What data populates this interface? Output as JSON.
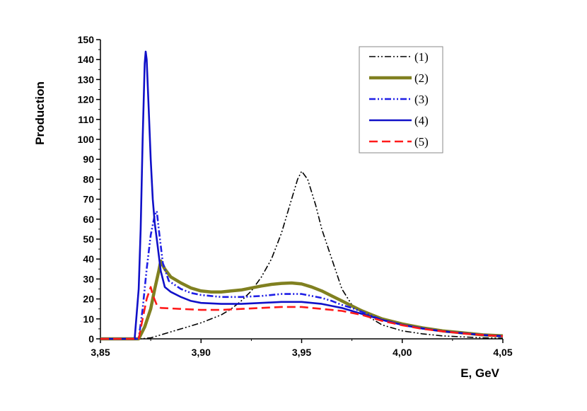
{
  "chart_data": {
    "type": "line",
    "title": "",
    "xlabel": "E, GeV",
    "ylabel": "Production",
    "xlim": [
      3.85,
      4.05
    ],
    "ylim": [
      0,
      150
    ],
    "x_ticks": [
      3.85,
      3.9,
      3.95,
      4.0,
      4.05
    ],
    "x_tick_labels": [
      "3,85",
      "3,90",
      "3,95",
      "4,00",
      "4,05"
    ],
    "y_ticks": [
      0,
      10,
      20,
      30,
      40,
      50,
      60,
      70,
      80,
      90,
      100,
      110,
      120,
      130,
      140,
      150
    ],
    "y_tick_labels": [
      "0",
      "10",
      "20",
      "30",
      "40",
      "50",
      "60",
      "70",
      "80",
      "90",
      "100",
      "110",
      "120",
      "130",
      "140",
      "150"
    ],
    "grid": false,
    "legend_position": "top-right",
    "series": [
      {
        "name": "(1)",
        "color": "#000000",
        "style": "dash-dot-dot",
        "width": 1.6,
        "points": [
          [
            3.85,
            0
          ],
          [
            3.87,
            0
          ],
          [
            3.875,
            0.5
          ],
          [
            3.88,
            2
          ],
          [
            3.885,
            3.5
          ],
          [
            3.89,
            5
          ],
          [
            3.895,
            6.5
          ],
          [
            3.9,
            8
          ],
          [
            3.905,
            10
          ],
          [
            3.91,
            12
          ],
          [
            3.915,
            15
          ],
          [
            3.92,
            19
          ],
          [
            3.925,
            24
          ],
          [
            3.93,
            31
          ],
          [
            3.935,
            40
          ],
          [
            3.94,
            53
          ],
          [
            3.945,
            70
          ],
          [
            3.948,
            80
          ],
          [
            3.95,
            84
          ],
          [
            3.953,
            80
          ],
          [
            3.957,
            67
          ],
          [
            3.96,
            55
          ],
          [
            3.965,
            40
          ],
          [
            3.97,
            25
          ],
          [
            3.975,
            17
          ],
          [
            3.98,
            13
          ],
          [
            3.985,
            10
          ],
          [
            3.99,
            7
          ],
          [
            4.0,
            4
          ],
          [
            4.01,
            2.5
          ],
          [
            4.02,
            1.5
          ],
          [
            4.03,
            1
          ],
          [
            4.04,
            0.5
          ],
          [
            4.05,
            0.3
          ]
        ]
      },
      {
        "name": "(2)",
        "color": "#808020",
        "style": "solid",
        "width": 4.5,
        "points": [
          [
            3.85,
            0
          ],
          [
            3.869,
            0
          ],
          [
            3.872,
            6
          ],
          [
            3.875,
            15
          ],
          [
            3.877,
            25
          ],
          [
            3.879,
            34
          ],
          [
            3.88,
            39
          ],
          [
            3.882,
            35
          ],
          [
            3.885,
            31
          ],
          [
            3.89,
            28
          ],
          [
            3.895,
            25.5
          ],
          [
            3.9,
            24
          ],
          [
            3.905,
            23.5
          ],
          [
            3.91,
            23.5
          ],
          [
            3.915,
            24
          ],
          [
            3.92,
            24.5
          ],
          [
            3.925,
            25.5
          ],
          [
            3.93,
            26.5
          ],
          [
            3.935,
            27.3
          ],
          [
            3.94,
            27.8
          ],
          [
            3.945,
            28
          ],
          [
            3.95,
            27.5
          ],
          [
            3.955,
            26
          ],
          [
            3.96,
            24
          ],
          [
            3.965,
            21.5
          ],
          [
            3.97,
            19
          ],
          [
            3.975,
            16.5
          ],
          [
            3.98,
            14
          ],
          [
            3.985,
            12
          ],
          [
            3.99,
            10
          ],
          [
            4.0,
            7.5
          ],
          [
            4.01,
            5.5
          ],
          [
            4.02,
            4
          ],
          [
            4.03,
            3
          ],
          [
            4.04,
            2
          ],
          [
            4.05,
            1.5
          ]
        ]
      },
      {
        "name": "(3)",
        "color": "#1e1ee6",
        "style": "dash-dot-dot",
        "width": 2.6,
        "points": [
          [
            3.85,
            0
          ],
          [
            3.869,
            0
          ],
          [
            3.871,
            15
          ],
          [
            3.873,
            35
          ],
          [
            3.875,
            52
          ],
          [
            3.877,
            62
          ],
          [
            3.878,
            64
          ],
          [
            3.879,
            55
          ],
          [
            3.881,
            38
          ],
          [
            3.884,
            29
          ],
          [
            3.89,
            25
          ],
          [
            3.895,
            23
          ],
          [
            3.9,
            22
          ],
          [
            3.91,
            21
          ],
          [
            3.92,
            21
          ],
          [
            3.93,
            21.5
          ],
          [
            3.94,
            22.5
          ],
          [
            3.95,
            22.5
          ],
          [
            3.955,
            21.5
          ],
          [
            3.96,
            20.5
          ],
          [
            3.965,
            19
          ],
          [
            3.97,
            17
          ],
          [
            3.975,
            15.5
          ],
          [
            3.98,
            13.5
          ],
          [
            3.985,
            11.5
          ],
          [
            3.99,
            9.5
          ],
          [
            4.0,
            7
          ],
          [
            4.01,
            5.2
          ],
          [
            4.02,
            3.8
          ],
          [
            4.03,
            2.8
          ],
          [
            4.04,
            1.9
          ],
          [
            4.05,
            1.3
          ]
        ]
      },
      {
        "name": "(4)",
        "color": "#1010c8",
        "style": "solid",
        "width": 2.6,
        "points": [
          [
            3.85,
            0
          ],
          [
            3.867,
            0
          ],
          [
            3.869,
            25
          ],
          [
            3.87,
            55
          ],
          [
            3.871,
            100
          ],
          [
            3.872,
            138
          ],
          [
            3.8725,
            144
          ],
          [
            3.873,
            140
          ],
          [
            3.874,
            115
          ],
          [
            3.875,
            90
          ],
          [
            3.876,
            70
          ],
          [
            3.877,
            58
          ],
          [
            3.878,
            50
          ],
          [
            3.879,
            42
          ],
          [
            3.88,
            34
          ],
          [
            3.882,
            26
          ],
          [
            3.885,
            23.5
          ],
          [
            3.89,
            21
          ],
          [
            3.895,
            19
          ],
          [
            3.9,
            18
          ],
          [
            3.91,
            17.5
          ],
          [
            3.92,
            17.5
          ],
          [
            3.93,
            18
          ],
          [
            3.94,
            18.5
          ],
          [
            3.95,
            18.5
          ],
          [
            3.96,
            17.5
          ],
          [
            3.965,
            16.5
          ],
          [
            3.97,
            15.5
          ],
          [
            3.975,
            14
          ],
          [
            3.98,
            12.5
          ],
          [
            3.985,
            11
          ],
          [
            3.99,
            9.5
          ],
          [
            4.0,
            7
          ],
          [
            4.01,
            5.2
          ],
          [
            4.02,
            3.8
          ],
          [
            4.03,
            2.8
          ],
          [
            4.04,
            1.9
          ],
          [
            4.05,
            1.3
          ]
        ]
      },
      {
        "name": "(5)",
        "color": "#ff1a1a",
        "style": "dashed",
        "width": 2.6,
        "points": [
          [
            3.85,
            0
          ],
          [
            3.869,
            0
          ],
          [
            3.871,
            10
          ],
          [
            3.873,
            20
          ],
          [
            3.875,
            26
          ],
          [
            3.876,
            22
          ],
          [
            3.878,
            17
          ],
          [
            3.88,
            15.5
          ],
          [
            3.89,
            15
          ],
          [
            3.9,
            14.5
          ],
          [
            3.91,
            14.5
          ],
          [
            3.92,
            15
          ],
          [
            3.93,
            15.5
          ],
          [
            3.94,
            16
          ],
          [
            3.95,
            16
          ],
          [
            3.96,
            15
          ],
          [
            3.97,
            14
          ],
          [
            3.975,
            13
          ],
          [
            3.98,
            12
          ],
          [
            3.985,
            10.5
          ],
          [
            3.99,
            9
          ],
          [
            4.0,
            6.8
          ],
          [
            4.01,
            5
          ],
          [
            4.02,
            3.8
          ],
          [
            4.03,
            2.7
          ],
          [
            4.04,
            1.9
          ],
          [
            4.05,
            1.3
          ]
        ]
      }
    ]
  }
}
